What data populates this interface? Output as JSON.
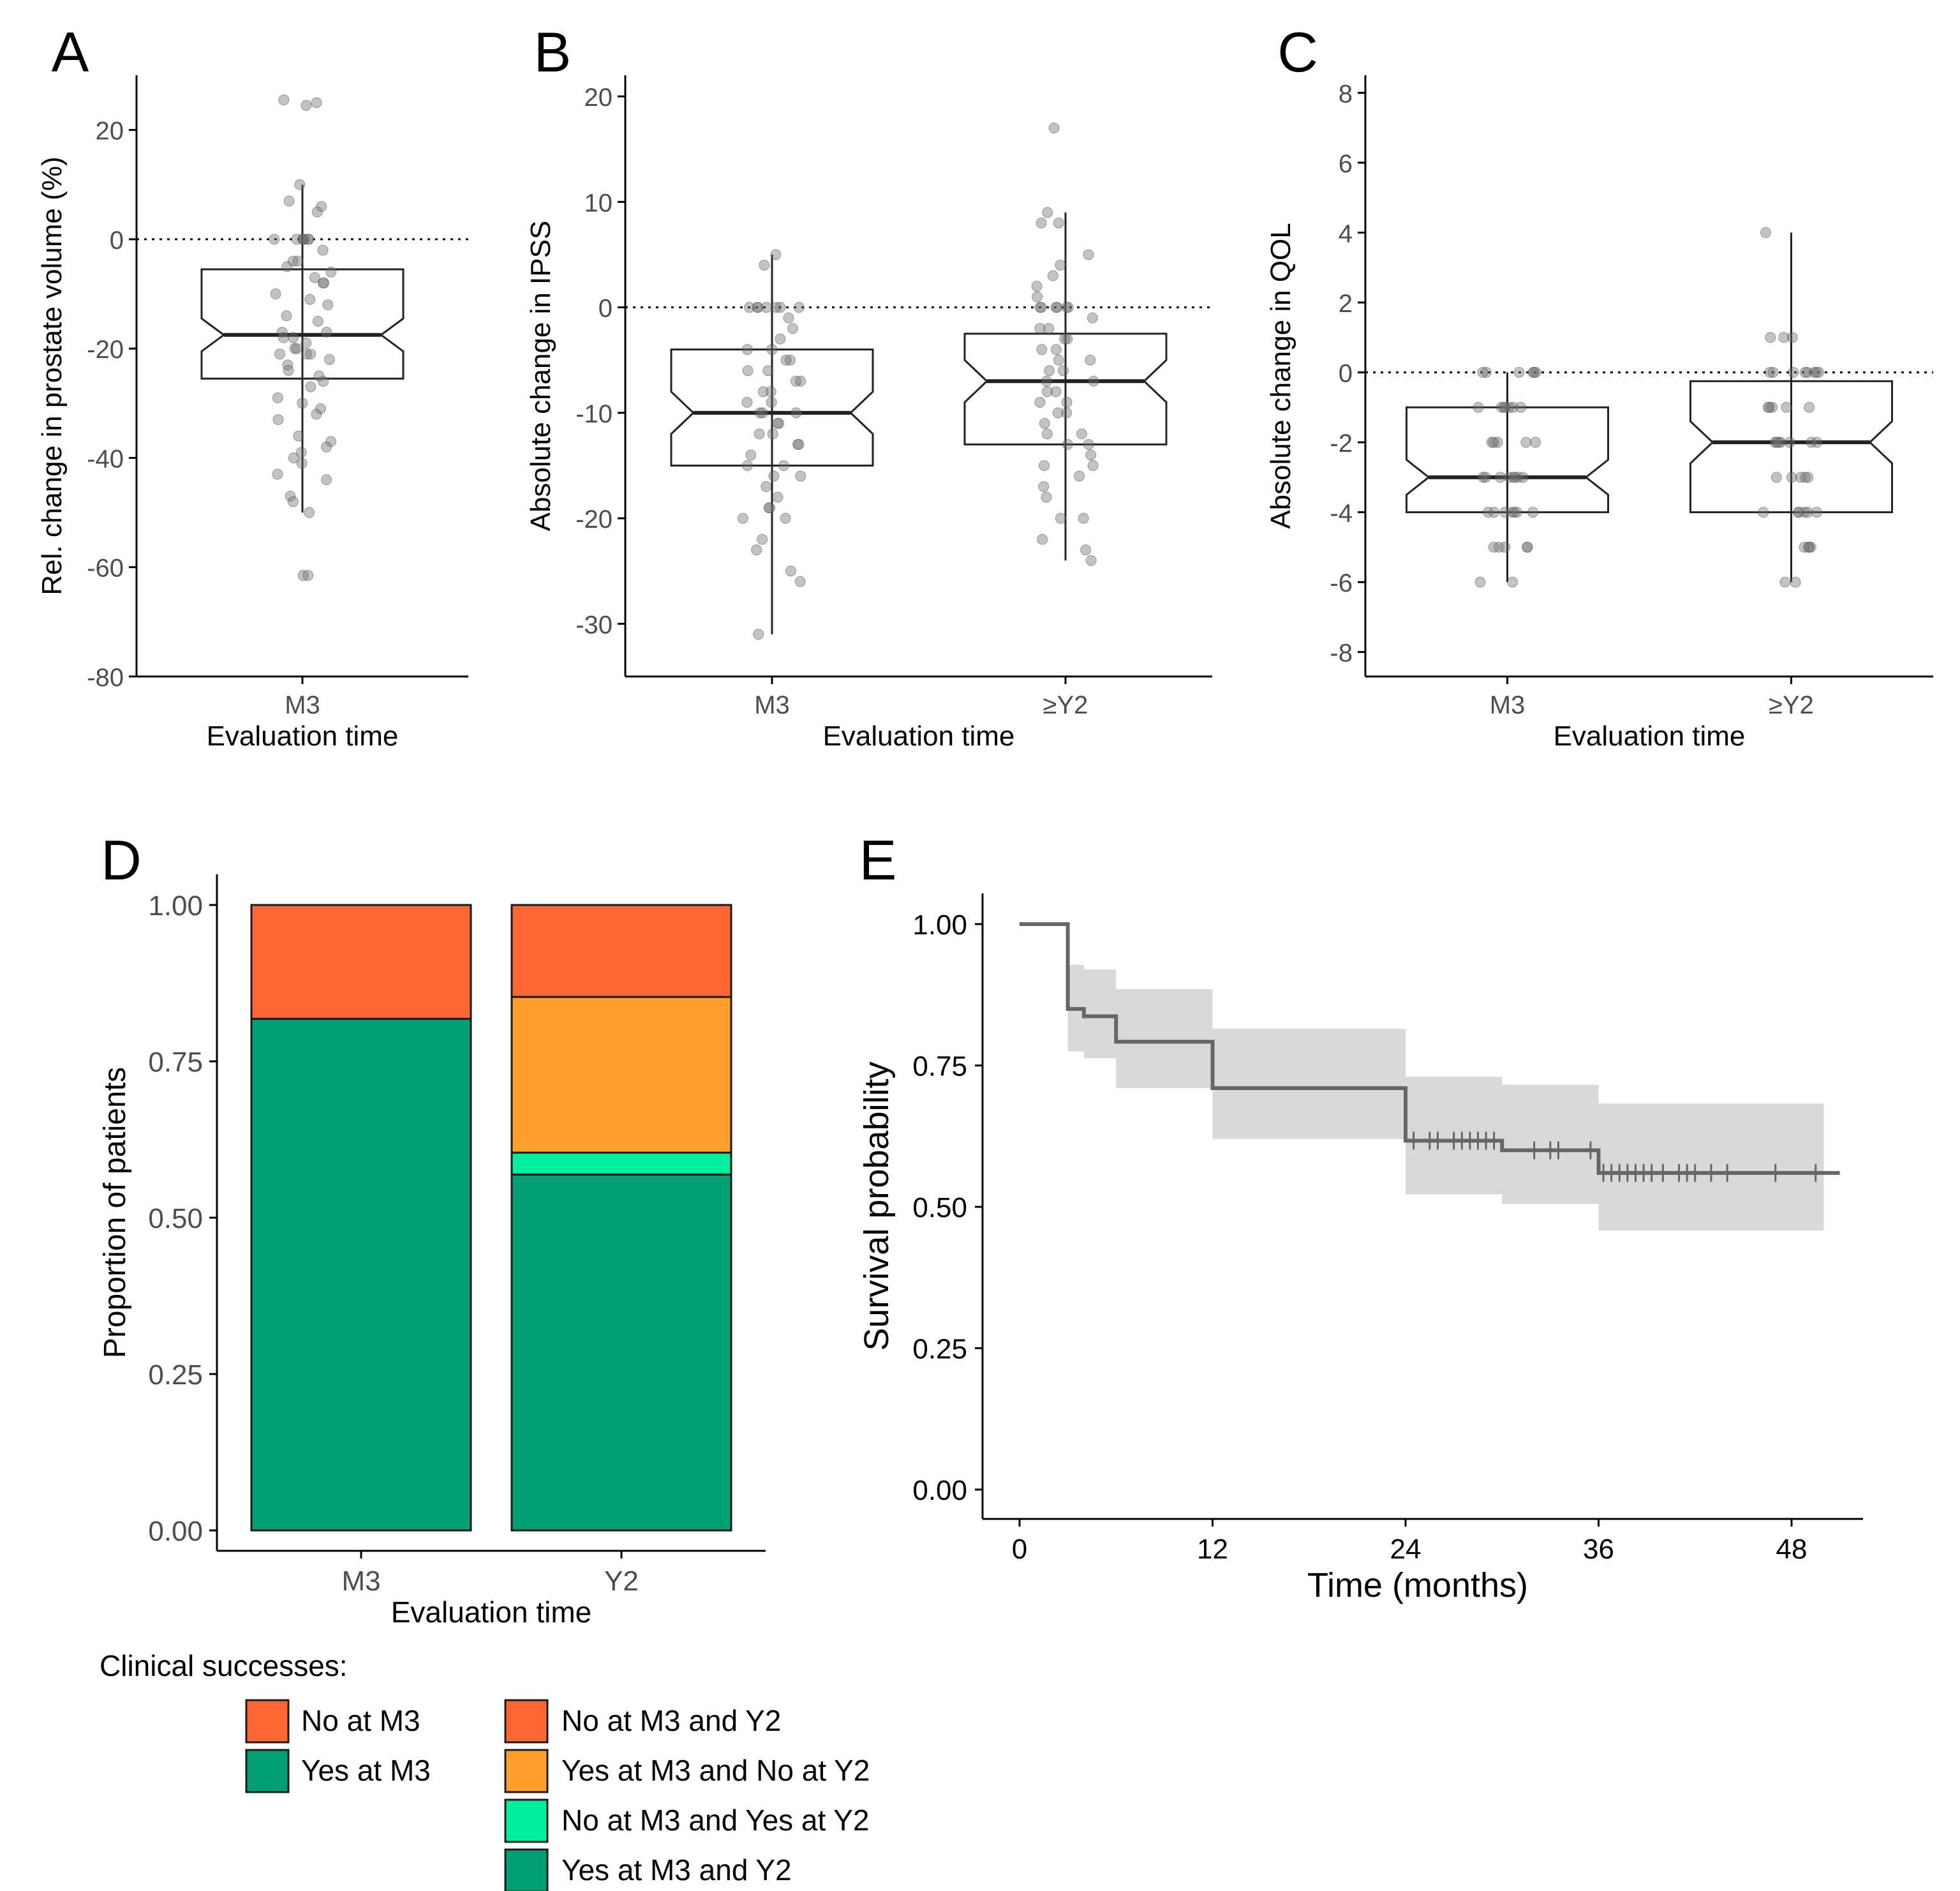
{
  "chart_data": [
    {
      "panel": "A",
      "type": "boxplot",
      "title": "",
      "xlabel": "Evaluation time",
      "ylabel": "Rel. change in prostate volume (%)",
      "ylim": [
        -80,
        30
      ],
      "yticks": [
        20,
        0,
        -20,
        -40,
        -60,
        -80
      ],
      "reference_line": 0,
      "categories": [
        "M3"
      ],
      "boxes": [
        {
          "category": "M3",
          "q1": -25.5,
          "median": -17.5,
          "q3": -5.5,
          "whisker_low": -50,
          "whisker_high": 10,
          "notch_low": -20.5,
          "notch_high": -14.5
        }
      ],
      "points": [
        {
          "category": "M3",
          "values": [
            25.5,
            25,
            24.5,
            10,
            7,
            6,
            5,
            0,
            0,
            0,
            0,
            0,
            0,
            0,
            -2,
            -4,
            -4,
            -5,
            -6,
            -7,
            -8,
            -8,
            -10,
            -11,
            -12,
            -14,
            -15,
            -17,
            -17,
            -18,
            -18,
            -19,
            -20,
            -20,
            -21,
            -21,
            -21,
            -22,
            -23,
            -24,
            -25,
            -26,
            -27,
            -29,
            -30,
            -31,
            -32,
            -33,
            -36,
            -37,
            -38,
            -39,
            -40,
            -41,
            -43,
            -44,
            -47,
            -48,
            -50,
            -61.5,
            -61.5
          ]
        }
      ]
    },
    {
      "panel": "B",
      "type": "boxplot",
      "title": "",
      "xlabel": "Evaluation time",
      "ylabel": "Absolute change in IPSS",
      "ylim": [
        -35,
        22
      ],
      "yticks": [
        20,
        10,
        0,
        -10,
        -20,
        -30
      ],
      "reference_line": 0,
      "categories": [
        "M3",
        "≥Y2"
      ],
      "boxes": [
        {
          "category": "M3",
          "q1": -15,
          "median": -10,
          "q3": -4,
          "whisker_low": -31,
          "whisker_high": 5,
          "notch_low": -12,
          "notch_high": -8
        },
        {
          "category": "≥Y2",
          "q1": -13,
          "median": -7,
          "q3": -2.5,
          "whisker_low": -24,
          "whisker_high": 9,
          "notch_low": -9,
          "notch_high": -5
        }
      ],
      "points": [
        {
          "category": "M3",
          "values": [
            5,
            4,
            0,
            0,
            0,
            0,
            0,
            0,
            0,
            -1,
            -2,
            -3,
            -4,
            -4,
            -5,
            -5,
            -6,
            -6,
            -7,
            -7,
            -8,
            -8,
            -9,
            -9,
            -10,
            -10,
            -10,
            -11,
            -11,
            -12,
            -12,
            -13,
            -13,
            -14,
            -15,
            -15,
            -16,
            -16,
            -17,
            -18,
            -19,
            -19,
            -20,
            -20,
            -22,
            -23,
            -25,
            -26,
            -31
          ]
        },
        {
          "category": "≥Y2",
          "values": [
            17,
            9,
            8,
            8,
            5,
            4,
            3,
            2,
            1,
            0,
            0,
            0,
            0,
            0,
            0,
            -1,
            -2,
            -2,
            -3,
            -3,
            -4,
            -4,
            -5,
            -5,
            -6,
            -6,
            -7,
            -7,
            -8,
            -8,
            -9,
            -9,
            -10,
            -10,
            -11,
            -12,
            -12,
            -13,
            -13,
            -14,
            -15,
            -15,
            -16,
            -17,
            -18,
            -20,
            -20,
            -22,
            -23,
            -24
          ]
        }
      ]
    },
    {
      "panel": "C",
      "type": "boxplot",
      "title": "",
      "xlabel": "Evaluation time",
      "ylabel": "Absolute change in QOL",
      "ylim": [
        -8.7,
        8.5
      ],
      "yticks": [
        8,
        6,
        4,
        2,
        0,
        -2,
        -4,
        -6,
        -8
      ],
      "reference_line": 0,
      "categories": [
        "M3",
        "≥Y2"
      ],
      "boxes": [
        {
          "category": "M3",
          "q1": -4,
          "median": -3,
          "q3": -1,
          "whisker_low": -6,
          "whisker_high": 0,
          "notch_low": -3.5,
          "notch_high": -2.5
        },
        {
          "category": "≥Y2",
          "q1": -4,
          "median": -2,
          "q3": -0.25,
          "whisker_low": -6,
          "whisker_high": 4,
          "notch_low": -2.6,
          "notch_high": -1.4
        }
      ],
      "points": [
        {
          "category": "M3",
          "values": [
            0,
            0,
            0,
            0,
            0,
            0,
            -1,
            -1,
            -1,
            -1,
            -1,
            -1,
            -1,
            -2,
            -2,
            -2,
            -2,
            -2,
            -3,
            -3,
            -3,
            -3,
            -3,
            -3,
            -3,
            -3,
            -4,
            -4,
            -4,
            -4,
            -4,
            -4,
            -4,
            -5,
            -5,
            -5,
            -5,
            -5,
            -6,
            -6
          ]
        },
        {
          "category": "≥Y2",
          "values": [
            4,
            1,
            1,
            1,
            0,
            0,
            0,
            0,
            0,
            0,
            0,
            0,
            -1,
            -1,
            -1,
            -1,
            -1,
            -2,
            -2,
            -2,
            -2,
            -2,
            -2,
            -2,
            -3,
            -3,
            -3,
            -3,
            -3,
            -4,
            -4,
            -4,
            -4,
            -4,
            -4,
            -5,
            -5,
            -5,
            -5,
            -6,
            -6
          ]
        }
      ]
    },
    {
      "panel": "D",
      "type": "bar",
      "stacked": true,
      "title": "",
      "xlabel": "Evaluation time",
      "ylabel": "Proportion of patients",
      "ylim": [
        0,
        1
      ],
      "yticks": [
        "1.00",
        "0.75",
        "0.50",
        "0.25",
        "0.00"
      ],
      "categories": [
        "M3",
        "Y2"
      ],
      "series": [
        {
          "name": "Yes at M3",
          "category": "M3",
          "color": "#009e73",
          "bottom": 0,
          "top": 0.818
        },
        {
          "name": "No at M3",
          "category": "M3",
          "color": "#ff6633",
          "bottom": 0.818,
          "top": 1
        },
        {
          "name": "Yes at M3 and Y2",
          "category": "Y2",
          "color": "#009e73",
          "bottom": 0,
          "top": 0.569
        },
        {
          "name": "No at M3 and Yes at Y2",
          "category": "Y2",
          "color": "#00eea0",
          "bottom": 0.569,
          "top": 0.604
        },
        {
          "name": "Yes at M3 and No at Y2",
          "category": "Y2",
          "color": "#ff9e2a",
          "bottom": 0.604,
          "top": 0.853
        },
        {
          "name": "No at M3 and Y2",
          "category": "Y2",
          "color": "#ff6633",
          "bottom": 0.853,
          "top": 1
        }
      ],
      "legend": {
        "title": "Clinical successes:",
        "placement": "bottom",
        "column1": [
          {
            "label": "No at M3",
            "color": "#ff6633"
          },
          {
            "label": "Yes at M3",
            "color": "#009e73"
          }
        ],
        "column2": [
          {
            "label": "No at M3 and Y2",
            "color": "#ff6633"
          },
          {
            "label": "Yes at M3 and No at Y2",
            "color": "#ff9e2a"
          },
          {
            "label": "No at M3 and Yes at Y2",
            "color": "#00eea0"
          },
          {
            "label": "Yes at M3 and Y2",
            "color": "#009e73"
          }
        ]
      }
    },
    {
      "panel": "E",
      "type": "line",
      "subtype": "kaplan-meier",
      "title": "",
      "xlabel": "Time (months)",
      "ylabel": "Survival probability",
      "xlim": [
        -2,
        54
      ],
      "ylim": [
        -0.05,
        1.05
      ],
      "xticks": [
        0,
        12,
        24,
        36,
        48
      ],
      "yticks": [
        "1.00",
        "0.75",
        "0.50",
        "0.25",
        "0.00"
      ],
      "line_color": "#666666",
      "band_color": "#d9d9d9",
      "steps": [
        {
          "t": 0,
          "s": 1.0
        },
        {
          "t": 3,
          "s": 0.85
        },
        {
          "t": 4,
          "s": 0.837
        },
        {
          "t": 6,
          "s": 0.792
        },
        {
          "t": 12,
          "s": 0.71
        },
        {
          "t": 24,
          "s": 0.617
        },
        {
          "t": 30,
          "s": 0.6
        },
        {
          "t": 36,
          "s": 0.56
        }
      ],
      "end_time": 51,
      "ci_band": [
        {
          "t0": 3,
          "t1": 4,
          "lo": 0.775,
          "hi": 0.928
        },
        {
          "t0": 4,
          "t1": 6,
          "lo": 0.763,
          "hi": 0.92
        },
        {
          "t0": 6,
          "t1": 12,
          "lo": 0.71,
          "hi": 0.885
        },
        {
          "t0": 12,
          "t1": 24,
          "lo": 0.62,
          "hi": 0.815
        },
        {
          "t0": 24,
          "t1": 30,
          "lo": 0.522,
          "hi": 0.73
        },
        {
          "t0": 30,
          "t1": 36,
          "lo": 0.505,
          "hi": 0.716
        },
        {
          "t0": 36,
          "t1": 50,
          "lo": 0.458,
          "hi": 0.683
        }
      ],
      "censor_times": [
        24.5,
        25.5,
        26,
        27,
        27.5,
        28,
        28.5,
        29,
        29.5,
        32,
        33,
        33.5,
        35.5,
        36.3,
        36.8,
        37.3,
        37.8,
        38.3,
        38.8,
        39.3,
        40,
        41,
        41.5,
        42,
        43,
        44,
        47,
        49.5
      ]
    }
  ],
  "panel_labels": [
    "A",
    "B",
    "C",
    "D",
    "E"
  ]
}
